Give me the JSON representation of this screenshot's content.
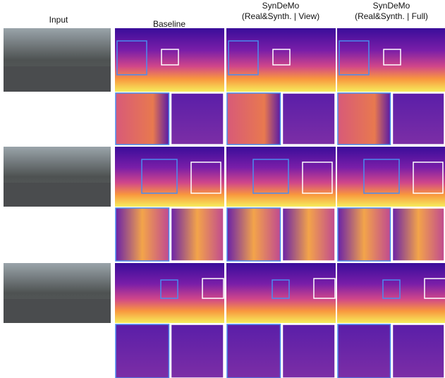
{
  "columns": [
    {
      "title": "Input"
    },
    {
      "title": "Baseline"
    },
    {
      "title": "SynDeMo",
      "subtitle": "(Real&Synth. | View)"
    },
    {
      "title": "SynDeMo",
      "subtitle": "(Real&Synth. | Full)"
    }
  ]
}
